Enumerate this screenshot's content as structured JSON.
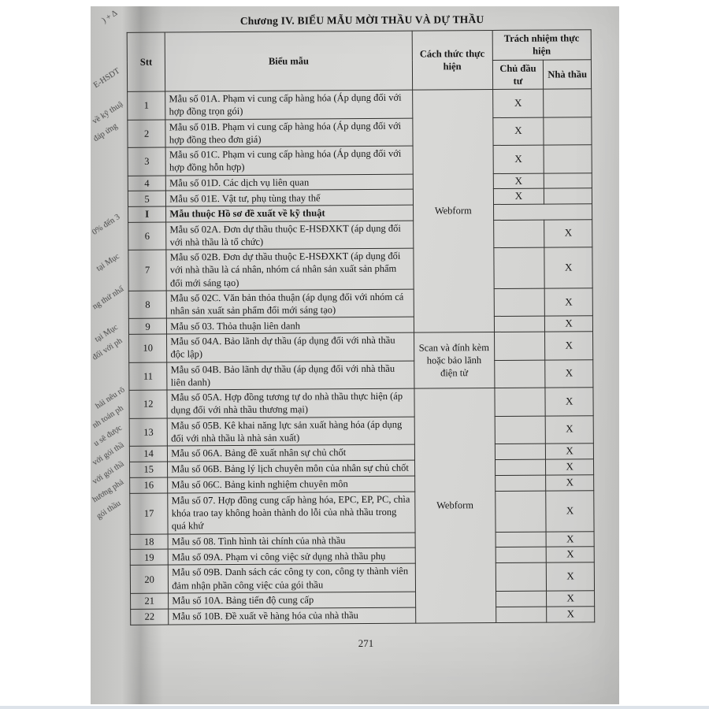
{
  "page": {
    "title": "Chương IV. BIỂU MẪU MỜI THẦU VÀ DỰ THẦU",
    "page_number": "271"
  },
  "table": {
    "headers": {
      "stt": "Stt",
      "form": "Biểu mẫu",
      "method": "Cách thức thực hiện",
      "responsibility": "Trách nhiệm thực hiện",
      "owner": "Chủ đầu tư",
      "contractor": "Nhà thầu"
    },
    "x_mark": "X",
    "method_cells": [
      {
        "start": 0,
        "span": 10,
        "text": "Webform",
        "align": "top"
      },
      {
        "start": 10,
        "span": 2,
        "text": "Scan và đính kèm hoặc bảo lãnh điện tử",
        "align": "middle"
      },
      {
        "start": 12,
        "span": 11,
        "text": "Webform",
        "align": "top"
      }
    ],
    "rows": [
      {
        "stt": "1",
        "label": "Mẫu số 01A. Phạm vi cung cấp hàng hóa (Áp dụng đối với hợp đồng trọn gói)",
        "resp": "owner"
      },
      {
        "stt": "2",
        "label": "Mẫu số 01B. Phạm vi cung cấp hàng hóa (Áp dụng đối với hợp đồng theo đơn giá)",
        "resp": "owner"
      },
      {
        "stt": "3",
        "label": "Mẫu số 01C. Phạm vi cung cấp hàng hóa (Áp dụng đối với hợp đồng hỗn hợp)",
        "resp": "owner"
      },
      {
        "stt": "4",
        "label": "Mẫu số 01D. Các dịch vụ liên quan",
        "resp": "owner"
      },
      {
        "stt": "5",
        "label": "Mẫu số 01E. Vật tư, phụ tùng thay thế",
        "resp": "owner"
      },
      {
        "stt": "I",
        "label": "Mẫu thuộc Hồ sơ đề xuất về kỹ thuật",
        "section": true
      },
      {
        "stt": "6",
        "label": "Mẫu số 02A. Đơn dự thầu thuộc E-HSĐXKT (áp dụng đối với nhà thầu là tổ chức)",
        "resp": "contractor"
      },
      {
        "stt": "7",
        "label": "Mẫu số 02B. Đơn dự thầu thuộc E-HSĐXKT (áp dụng đối với nhà thầu là cá nhân, nhóm cá nhân sản xuất sản phẩm đổi mới sáng tạo)",
        "resp": "contractor"
      },
      {
        "stt": "8",
        "label": "Mẫu số 02C. Văn bản thỏa thuận (áp dụng đối với nhóm cá nhân sản xuất sản phẩm đổi mới sáng tạo)",
        "resp": "contractor"
      },
      {
        "stt": "9",
        "label": "Mẫu số 03. Thỏa thuận liên danh",
        "resp": "contractor"
      },
      {
        "stt": "10",
        "label": "Mẫu số 04A. Bảo lãnh dự thầu (áp dụng đối với nhà thầu độc lập)",
        "resp": "contractor"
      },
      {
        "stt": "11",
        "label": "Mẫu số 04B. Bảo lãnh dự thầu (áp dụng đối với nhà thầu liên danh)",
        "resp": "contractor"
      },
      {
        "stt": "12",
        "label": "Mẫu số 05A. Hợp đồng tương tự do nhà thầu thực hiện (áp dụng đối với nhà thầu thương mại)",
        "resp": "contractor"
      },
      {
        "stt": "13",
        "label": "Mẫu số 05B. Kê khai năng lực sản xuất hàng hóa (áp dụng đối với nhà thầu là nhà sản xuất)",
        "resp": "contractor"
      },
      {
        "stt": "14",
        "label": "Mẫu số 06A. Bảng đề xuất nhân sự chủ chốt",
        "resp": "contractor"
      },
      {
        "stt": "15",
        "label": "Mẫu số 06B. Bảng lý lịch chuyên môn của nhân sự chủ chốt",
        "resp": "contractor"
      },
      {
        "stt": "16",
        "label": "Mẫu số 06C. Bảng kinh nghiệm chuyên môn",
        "resp": "contractor"
      },
      {
        "stt": "17",
        "label": "Mẫu số 07. Hợp đồng cung cấp hàng hóa, EPC, EP, PC, chìa khóa trao tay không hoàn thành do lỗi của nhà thầu trong quá khứ",
        "resp": "contractor"
      },
      {
        "stt": "18",
        "label": "Mẫu số 08. Tình hình tài chính của nhà thầu",
        "resp": "contractor"
      },
      {
        "stt": "19",
        "label": "Mẫu số 09A. Phạm vi công việc sử dụng nhà thầu phụ",
        "resp": "contractor"
      },
      {
        "stt": "20",
        "label": "Mẫu số 09B. Danh sách các công ty con, công ty thành viên đảm nhận phần công việc của gói thầu",
        "resp": "contractor"
      },
      {
        "stt": "21",
        "label": "Mẫu số 10A. Bảng tiến độ cung cấp",
        "resp": "contractor"
      },
      {
        "stt": "22",
        "label": "Mẫu số 10B. Đề xuất về hàng hóa của nhà thầu",
        "resp": "contractor"
      }
    ]
  },
  "left_page_fragments": [
    ") + Δ",
    "E-HSDT",
    "về kỹ thuậ",
    "đáp ứng",
    "0% đến 3",
    "tại Mục",
    "ng thứ nhấ",
    "tại Mục",
    "đối với ph",
    "hải nêu rõ",
    "nh toán ph",
    "u sẽ được",
    "với gói thầ",
    "với gói thầ",
    "hương phá",
    "gói thầu"
  ]
}
